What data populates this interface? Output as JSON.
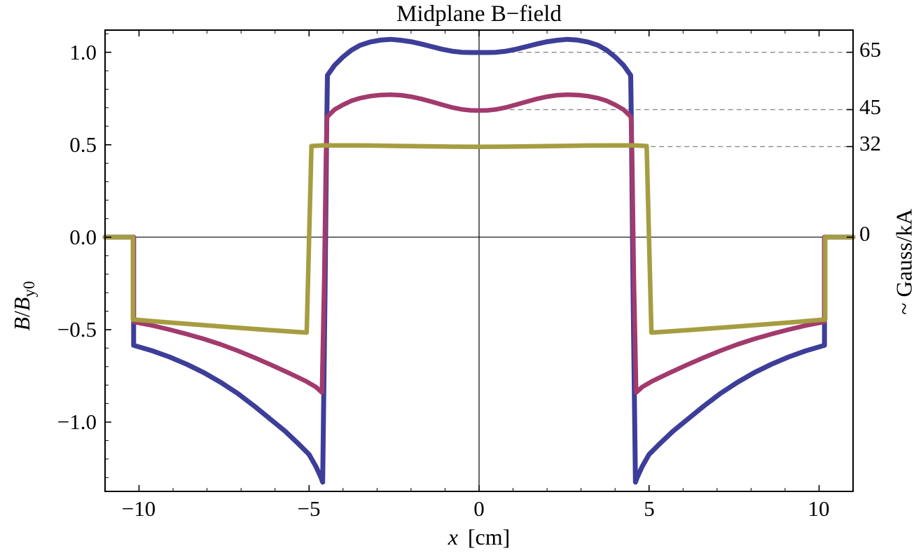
{
  "page": {
    "background": "#ffffff"
  },
  "chart_data": {
    "type": "line",
    "title": "Midplane B−field",
    "xlabel": {
      "var": "x",
      "unit": "[cm]"
    },
    "ylabel_left": {
      "num": "B",
      "sep": "/",
      "den": "B",
      "sub": "y0"
    },
    "ylabel_right": "~ Gauss/kA",
    "xlim": [
      -11,
      11
    ],
    "ylim": [
      -1.375,
      1.12
    ],
    "grid": false,
    "frame": true,
    "legend": "none",
    "xticks": [
      {
        "v": -10,
        "label": "−10"
      },
      {
        "v": -5,
        "label": "−5"
      },
      {
        "v": 0,
        "label": "0"
      },
      {
        "v": 5,
        "label": "5"
      },
      {
        "v": 10,
        "label": "10"
      }
    ],
    "yticks_left": [
      {
        "v": 1.0,
        "label": "1.0"
      },
      {
        "v": 0.5,
        "label": "0.5"
      },
      {
        "v": 0.0,
        "label": "0.0"
      },
      {
        "v": -0.5,
        "label": "−0.5"
      },
      {
        "v": -1.0,
        "label": "−1.0"
      }
    ],
    "yticks_right": [
      {
        "v": 1.0,
        "label": "65"
      },
      {
        "v": 0.69,
        "label": "45"
      },
      {
        "v": 0.49,
        "label": "32"
      },
      {
        "v": 0.0,
        "label": "0"
      }
    ],
    "minor_ticks": {
      "x_step": 1,
      "y_step": 0.1
    },
    "guides": [
      {
        "y": 1.0,
        "x1": 0.9,
        "x2": 11,
        "label": "65"
      },
      {
        "y": 0.69,
        "x1": 0.9,
        "x2": 11,
        "label": "45"
      },
      {
        "y": 0.49,
        "x1": 5.05,
        "x2": 11,
        "label": "32"
      }
    ],
    "colors": {
      "frame": "#000000",
      "guide": "#8a8a8a",
      "series_blue": "#3d3e99",
      "series_magenta": "#a23a6d",
      "series_olive": "#a69d41"
    },
    "series": [
      {
        "name": "blue-65",
        "right_label": "65",
        "color": "#3d3e99",
        "width": 7,
        "points": [
          [
            -11,
            0
          ],
          [
            -10.16,
            0
          ],
          [
            -10.16,
            -0.585
          ],
          [
            -9.6,
            -0.615
          ],
          [
            -9.1,
            -0.648
          ],
          [
            -8.6,
            -0.687
          ],
          [
            -8.1,
            -0.732
          ],
          [
            -7.6,
            -0.785
          ],
          [
            -7.1,
            -0.845
          ],
          [
            -6.6,
            -0.915
          ],
          [
            -6.1,
            -0.99
          ],
          [
            -5.7,
            -1.05
          ],
          [
            -5.3,
            -1.12
          ],
          [
            -5.0,
            -1.175
          ],
          [
            -4.8,
            -1.24
          ],
          [
            -4.65,
            -1.3
          ],
          [
            -4.6,
            -1.325
          ],
          [
            -4.53,
            -0.3
          ],
          [
            -4.48,
            0.6
          ],
          [
            -4.46,
            0.875
          ],
          [
            -4.25,
            0.93
          ],
          [
            -4.0,
            0.975
          ],
          [
            -3.75,
            1.012
          ],
          [
            -3.5,
            1.038
          ],
          [
            -3.2,
            1.056
          ],
          [
            -2.9,
            1.066
          ],
          [
            -2.6,
            1.07
          ],
          [
            -2.3,
            1.065
          ],
          [
            -2.0,
            1.057
          ],
          [
            -1.7,
            1.045
          ],
          [
            -1.4,
            1.031
          ],
          [
            -1.1,
            1.017
          ],
          [
            -0.8,
            1.006
          ],
          [
            -0.5,
            1.0
          ],
          [
            -0.25,
            0.999
          ],
          [
            0,
            0.999
          ],
          [
            0.25,
            0.999
          ],
          [
            0.5,
            1.0
          ],
          [
            0.8,
            1.006
          ],
          [
            1.1,
            1.017
          ],
          [
            1.4,
            1.031
          ],
          [
            1.7,
            1.045
          ],
          [
            2.0,
            1.057
          ],
          [
            2.3,
            1.065
          ],
          [
            2.6,
            1.07
          ],
          [
            2.9,
            1.066
          ],
          [
            3.2,
            1.056
          ],
          [
            3.5,
            1.038
          ],
          [
            3.75,
            1.012
          ],
          [
            4.0,
            0.975
          ],
          [
            4.25,
            0.93
          ],
          [
            4.46,
            0.875
          ],
          [
            4.48,
            0.6
          ],
          [
            4.53,
            -0.3
          ],
          [
            4.6,
            -1.325
          ],
          [
            4.65,
            -1.3
          ],
          [
            4.8,
            -1.24
          ],
          [
            5.0,
            -1.175
          ],
          [
            5.3,
            -1.12
          ],
          [
            5.7,
            -1.05
          ],
          [
            6.1,
            -0.99
          ],
          [
            6.6,
            -0.915
          ],
          [
            7.1,
            -0.845
          ],
          [
            7.6,
            -0.785
          ],
          [
            8.1,
            -0.732
          ],
          [
            8.6,
            -0.687
          ],
          [
            9.1,
            -0.648
          ],
          [
            9.6,
            -0.615
          ],
          [
            10.16,
            -0.585
          ],
          [
            10.16,
            0
          ],
          [
            11,
            0
          ]
        ]
      },
      {
        "name": "magenta-45",
        "right_label": "45",
        "color": "#a23a6d",
        "width": 6.5,
        "points": [
          [
            -11,
            0
          ],
          [
            -10.16,
            0
          ],
          [
            -10.16,
            -0.458
          ],
          [
            -9.6,
            -0.478
          ],
          [
            -9.1,
            -0.5
          ],
          [
            -8.6,
            -0.524
          ],
          [
            -8.1,
            -0.55
          ],
          [
            -7.6,
            -0.58
          ],
          [
            -7.1,
            -0.614
          ],
          [
            -6.6,
            -0.652
          ],
          [
            -6.1,
            -0.692
          ],
          [
            -5.6,
            -0.734
          ],
          [
            -5.1,
            -0.778
          ],
          [
            -4.8,
            -0.81
          ],
          [
            -4.62,
            -0.84
          ],
          [
            -4.55,
            -0.2
          ],
          [
            -4.5,
            0.45
          ],
          [
            -4.47,
            0.65
          ],
          [
            -4.25,
            0.69
          ],
          [
            -4.0,
            0.716
          ],
          [
            -3.75,
            0.738
          ],
          [
            -3.5,
            0.752
          ],
          [
            -3.2,
            0.763
          ],
          [
            -2.9,
            0.769
          ],
          [
            -2.6,
            0.771
          ],
          [
            -2.3,
            0.768
          ],
          [
            -2.0,
            0.76
          ],
          [
            -1.7,
            0.748
          ],
          [
            -1.4,
            0.733
          ],
          [
            -1.1,
            0.717
          ],
          [
            -0.8,
            0.702
          ],
          [
            -0.5,
            0.691
          ],
          [
            -0.25,
            0.686
          ],
          [
            0,
            0.685
          ],
          [
            0.25,
            0.686
          ],
          [
            0.5,
            0.691
          ],
          [
            0.8,
            0.702
          ],
          [
            1.1,
            0.717
          ],
          [
            1.4,
            0.733
          ],
          [
            1.7,
            0.748
          ],
          [
            2.0,
            0.76
          ],
          [
            2.3,
            0.768
          ],
          [
            2.6,
            0.771
          ],
          [
            2.9,
            0.769
          ],
          [
            3.2,
            0.763
          ],
          [
            3.5,
            0.752
          ],
          [
            3.75,
            0.738
          ],
          [
            4.0,
            0.716
          ],
          [
            4.25,
            0.69
          ],
          [
            4.47,
            0.65
          ],
          [
            4.5,
            0.45
          ],
          [
            4.55,
            -0.2
          ],
          [
            4.62,
            -0.84
          ],
          [
            4.8,
            -0.81
          ],
          [
            5.1,
            -0.778
          ],
          [
            5.6,
            -0.734
          ],
          [
            6.1,
            -0.692
          ],
          [
            6.6,
            -0.652
          ],
          [
            7.1,
            -0.614
          ],
          [
            7.6,
            -0.58
          ],
          [
            8.1,
            -0.55
          ],
          [
            8.6,
            -0.524
          ],
          [
            9.1,
            -0.5
          ],
          [
            9.6,
            -0.478
          ],
          [
            10.16,
            -0.458
          ],
          [
            10.16,
            0
          ],
          [
            11,
            0
          ]
        ]
      },
      {
        "name": "olive-32",
        "right_label": "32",
        "color": "#a69d41",
        "width": 6.5,
        "points": [
          [
            -11,
            0
          ],
          [
            -10.18,
            0
          ],
          [
            -10.18,
            -0.445
          ],
          [
            -9.5,
            -0.456
          ],
          [
            -8.5,
            -0.47
          ],
          [
            -7.5,
            -0.484
          ],
          [
            -6.5,
            -0.498
          ],
          [
            -5.8,
            -0.507
          ],
          [
            -5.35,
            -0.513
          ],
          [
            -5.07,
            -0.516
          ],
          [
            -4.93,
            0.493
          ],
          [
            -4.6,
            0.496
          ],
          [
            -4.0,
            0.4965
          ],
          [
            -3.2,
            0.4955
          ],
          [
            -2.4,
            0.4935
          ],
          [
            -1.6,
            0.4915
          ],
          [
            -0.8,
            0.4895
          ],
          [
            0,
            0.4885
          ],
          [
            0.8,
            0.4895
          ],
          [
            1.6,
            0.4915
          ],
          [
            2.4,
            0.4935
          ],
          [
            3.2,
            0.4955
          ],
          [
            4.0,
            0.4965
          ],
          [
            4.6,
            0.496
          ],
          [
            4.93,
            0.493
          ],
          [
            5.07,
            -0.516
          ],
          [
            5.35,
            -0.513
          ],
          [
            5.8,
            -0.507
          ],
          [
            6.5,
            -0.498
          ],
          [
            7.5,
            -0.484
          ],
          [
            8.5,
            -0.47
          ],
          [
            9.5,
            -0.456
          ],
          [
            10.18,
            -0.445
          ],
          [
            10.18,
            0
          ],
          [
            11,
            0
          ]
        ]
      }
    ]
  }
}
